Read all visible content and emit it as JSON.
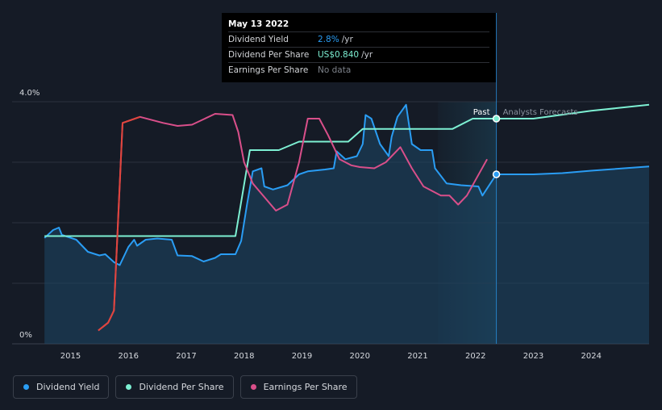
{
  "tooltip": {
    "date": "May 13 2022",
    "rows": [
      {
        "label": "Dividend Yield",
        "value": "2.8%",
        "unit": "/yr",
        "color": "#2a9df4"
      },
      {
        "label": "Dividend Per Share",
        "value": "US$0.840",
        "unit": "/yr",
        "color": "#7df0d3"
      },
      {
        "label": "Earnings Per Share",
        "value": "No data",
        "unit": "",
        "color": "#7d828a"
      }
    ]
  },
  "regions": {
    "past_label": "Past",
    "forecast_label": "Analysts Forecasts"
  },
  "legend": [
    {
      "label": "Dividend Yield",
      "color": "#2a9df4"
    },
    {
      "label": "Dividend Per Share",
      "color": "#7df0d3"
    },
    {
      "label": "Earnings Per Share",
      "color": "#d94f8a"
    }
  ],
  "chart_data": {
    "type": "line",
    "title": "",
    "xlabel": "",
    "ylabel": "",
    "x_ticks": [
      "2015",
      "2016",
      "2017",
      "2018",
      "2019",
      "2020",
      "2021",
      "2022",
      "2023",
      "2024"
    ],
    "y_ticks": [
      "4.0%",
      "0%"
    ],
    "ylim": [
      0,
      4.0
    ],
    "xlim": [
      2014.45,
      2025.0
    ],
    "grid": true,
    "cursor_x": 2022.36,
    "forecast_start": 2022.36,
    "shaded_from": 2021.35,
    "series": [
      {
        "name": "Dividend Yield",
        "color": "#2a9df4",
        "area": true,
        "points": [
          [
            2014.55,
            1.75
          ],
          [
            2014.7,
            1.88
          ],
          [
            2014.8,
            1.92
          ],
          [
            2014.85,
            1.8
          ],
          [
            2015.1,
            1.72
          ],
          [
            2015.3,
            1.52
          ],
          [
            2015.5,
            1.46
          ],
          [
            2015.6,
            1.48
          ],
          [
            2015.75,
            1.35
          ],
          [
            2015.85,
            1.3
          ],
          [
            2016.0,
            1.6
          ],
          [
            2016.1,
            1.72
          ],
          [
            2016.15,
            1.62
          ],
          [
            2016.3,
            1.72
          ],
          [
            2016.5,
            1.74
          ],
          [
            2016.75,
            1.72
          ],
          [
            2016.85,
            1.46
          ],
          [
            2017.1,
            1.45
          ],
          [
            2017.3,
            1.36
          ],
          [
            2017.5,
            1.42
          ],
          [
            2017.6,
            1.48
          ],
          [
            2017.85,
            1.48
          ],
          [
            2017.95,
            1.7
          ],
          [
            2018.05,
            2.3
          ],
          [
            2018.15,
            2.85
          ],
          [
            2018.3,
            2.9
          ],
          [
            2018.35,
            2.6
          ],
          [
            2018.5,
            2.55
          ],
          [
            2018.75,
            2.62
          ],
          [
            2018.95,
            2.8
          ],
          [
            2019.1,
            2.85
          ],
          [
            2019.4,
            2.88
          ],
          [
            2019.55,
            2.9
          ],
          [
            2019.6,
            3.18
          ],
          [
            2019.75,
            3.05
          ],
          [
            2019.95,
            3.1
          ],
          [
            2020.05,
            3.3
          ],
          [
            2020.1,
            3.78
          ],
          [
            2020.2,
            3.72
          ],
          [
            2020.35,
            3.3
          ],
          [
            2020.5,
            3.1
          ],
          [
            2020.55,
            3.42
          ],
          [
            2020.65,
            3.75
          ],
          [
            2020.8,
            3.95
          ],
          [
            2020.9,
            3.3
          ],
          [
            2021.05,
            3.2
          ],
          [
            2021.25,
            3.2
          ],
          [
            2021.3,
            2.9
          ],
          [
            2021.5,
            2.65
          ],
          [
            2021.75,
            2.62
          ],
          [
            2022.05,
            2.6
          ],
          [
            2022.12,
            2.45
          ],
          [
            2022.36,
            2.8
          ],
          [
            2023.0,
            2.8
          ],
          [
            2023.5,
            2.82
          ],
          [
            2024.0,
            2.86
          ],
          [
            2025.0,
            2.93
          ]
        ]
      },
      {
        "name": "Dividend Per Share",
        "color": "#7df0d3",
        "area": false,
        "points": [
          [
            2014.55,
            1.78
          ],
          [
            2017.85,
            1.78
          ],
          [
            2018.1,
            3.2
          ],
          [
            2018.6,
            3.2
          ],
          [
            2018.95,
            3.34
          ],
          [
            2019.8,
            3.34
          ],
          [
            2020.05,
            3.55
          ],
          [
            2021.6,
            3.55
          ],
          [
            2021.95,
            3.72
          ],
          [
            2022.36,
            3.72
          ],
          [
            2023.0,
            3.72
          ],
          [
            2024.0,
            3.85
          ],
          [
            2025.0,
            3.95
          ]
        ]
      },
      {
        "name": "Earnings Per Share",
        "color": "#d94f8a",
        "area": false,
        "points": [
          [
            2015.48,
            0.22
          ],
          [
            2015.65,
            0.35
          ],
          [
            2015.75,
            0.55
          ],
          [
            2015.9,
            3.65
          ],
          [
            2016.2,
            3.75
          ],
          [
            2016.6,
            3.65
          ],
          [
            2016.85,
            3.6
          ],
          [
            2017.1,
            3.62
          ],
          [
            2017.5,
            3.8
          ],
          [
            2017.8,
            3.78
          ],
          [
            2017.9,
            3.5
          ],
          [
            2018.0,
            3.0
          ],
          [
            2018.15,
            2.65
          ],
          [
            2018.3,
            2.48
          ],
          [
            2018.55,
            2.2
          ],
          [
            2018.75,
            2.3
          ],
          [
            2018.95,
            3.0
          ],
          [
            2019.1,
            3.72
          ],
          [
            2019.3,
            3.72
          ],
          [
            2019.45,
            3.45
          ],
          [
            2019.65,
            3.05
          ],
          [
            2019.85,
            2.95
          ],
          [
            2020.0,
            2.92
          ],
          [
            2020.25,
            2.9
          ],
          [
            2020.45,
            3.0
          ],
          [
            2020.7,
            3.25
          ],
          [
            2020.9,
            2.9
          ],
          [
            2021.1,
            2.6
          ],
          [
            2021.4,
            2.45
          ],
          [
            2021.55,
            2.45
          ],
          [
            2021.7,
            2.3
          ],
          [
            2021.85,
            2.45
          ],
          [
            2022.2,
            3.05
          ]
        ]
      }
    ],
    "highlight_points": [
      {
        "series": "Dividend Yield",
        "x": 2022.36,
        "y": 2.8
      },
      {
        "series": "Dividend Per Share",
        "x": 2022.36,
        "y": 3.72
      }
    ]
  }
}
